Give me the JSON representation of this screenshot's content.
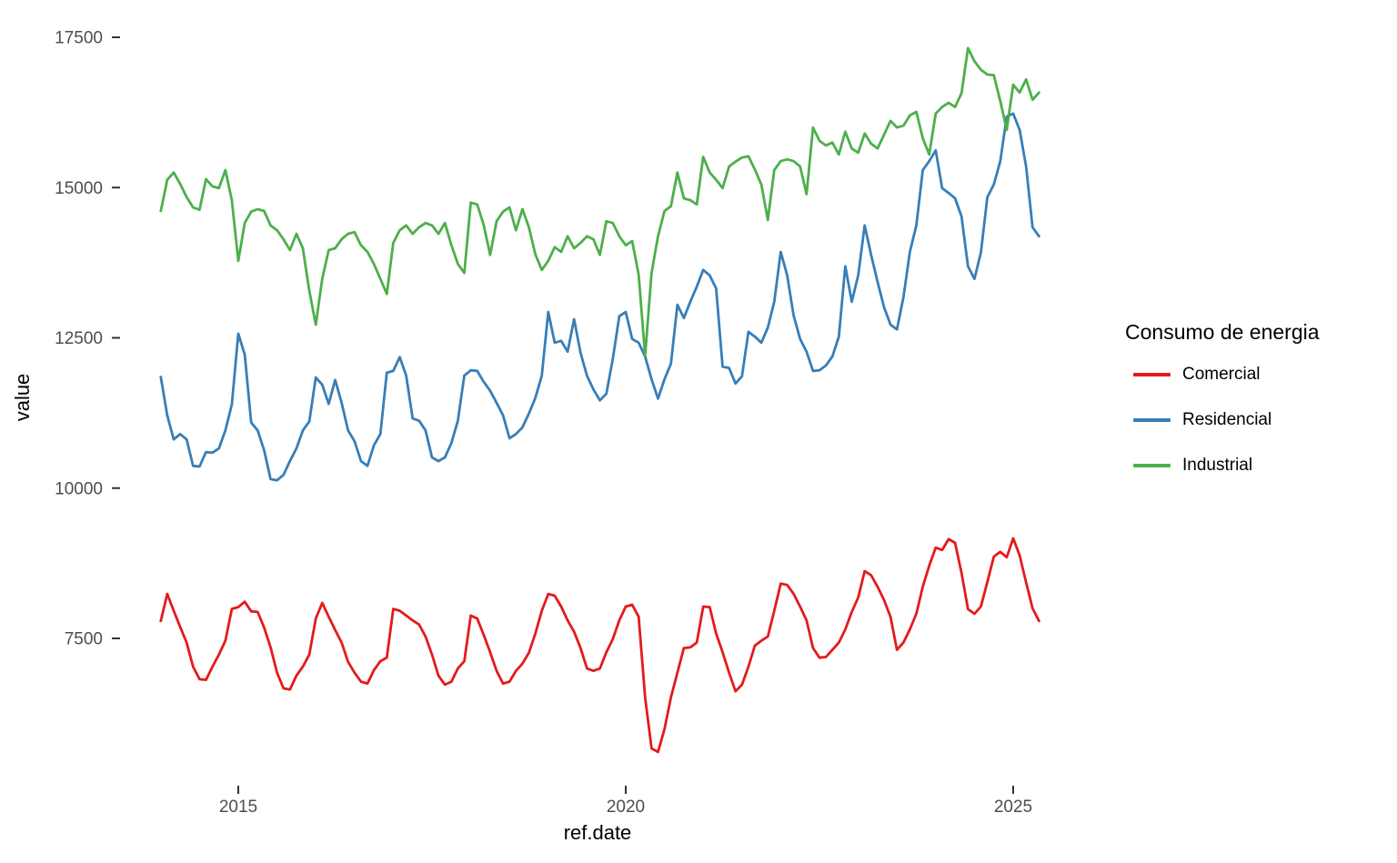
{
  "legend": {
    "title": "Consumo de energia",
    "items": [
      {
        "label": "Comercial",
        "color": "#E41A1C"
      },
      {
        "label": "Residencial",
        "color": "#377EB8"
      },
      {
        "label": "Industrial",
        "color": "#4DAF4A"
      }
    ]
  },
  "chart_data": {
    "type": "line",
    "title": "",
    "xlabel": "ref.date",
    "ylabel": "value",
    "x_ticks": [
      2015,
      2020,
      2025
    ],
    "y_ticks": [
      7500,
      10000,
      12500,
      15000,
      17500
    ],
    "ylim": [
      5400,
      17600
    ],
    "xlim_years": [
      2013.85,
      2025.6
    ],
    "frequency": "monthly",
    "x_start": "2014-01",
    "x_end": "2025-05",
    "grid": "off",
    "legend_position": "right",
    "series": [
      {
        "name": "Comercial",
        "color": "#E41A1C",
        "values": [
          7790,
          8240,
          7960,
          7690,
          7430,
          7030,
          6820,
          6810,
          7030,
          7230,
          7460,
          7990,
          8020,
          8110,
          7950,
          7940,
          7680,
          7350,
          6930,
          6670,
          6650,
          6880,
          7030,
          7230,
          7830,
          8090,
          7860,
          7640,
          7430,
          7110,
          6930,
          6780,
          6750,
          6970,
          7120,
          7180,
          7990,
          7960,
          7880,
          7800,
          7730,
          7530,
          7230,
          6880,
          6730,
          6780,
          7000,
          7120,
          7880,
          7830,
          7560,
          7270,
          6960,
          6750,
          6780,
          6960,
          7080,
          7260,
          7580,
          7960,
          8240,
          8210,
          8030,
          7800,
          7610,
          7340,
          7000,
          6960,
          7000,
          7270,
          7490,
          7800,
          8030,
          8060,
          7860,
          6520,
          5670,
          5610,
          5990,
          6520,
          6930,
          7340,
          7350,
          7430,
          8030,
          8020,
          7580,
          7270,
          6930,
          6620,
          6730,
          7030,
          7380,
          7460,
          7530,
          7960,
          8410,
          8390,
          8240,
          8030,
          7800,
          7340,
          7180,
          7190,
          7310,
          7430,
          7650,
          7940,
          8180,
          8620,
          8550,
          8360,
          8140,
          7860,
          7310,
          7430,
          7650,
          7910,
          8360,
          8710,
          9010,
          8970,
          9150,
          9090,
          8590,
          7985,
          7910,
          8030,
          8440,
          8860,
          8940,
          8850,
          9165,
          8880,
          8430,
          8000,
          7790
        ]
      },
      {
        "name": "Residencial",
        "color": "#377EB8",
        "values": [
          11850,
          11210,
          10810,
          10900,
          10810,
          10370,
          10360,
          10600,
          10590,
          10660,
          10960,
          11390,
          12570,
          12220,
          11090,
          10960,
          10630,
          10150,
          10130,
          10220,
          10450,
          10660,
          10960,
          11110,
          11840,
          11720,
          11400,
          11800,
          11420,
          10960,
          10780,
          10450,
          10370,
          10710,
          10900,
          11920,
          11950,
          12180,
          11870,
          11160,
          11120,
          10960,
          10510,
          10450,
          10510,
          10750,
          11120,
          11870,
          11960,
          11950,
          11770,
          11620,
          11420,
          11210,
          10830,
          10900,
          11010,
          11240,
          11500,
          11870,
          12930,
          12420,
          12450,
          12270,
          12810,
          12250,
          11870,
          11640,
          11460,
          11570,
          12150,
          12860,
          12930,
          12480,
          12420,
          12190,
          11810,
          11490,
          11810,
          12070,
          13050,
          12830,
          13100,
          13350,
          13630,
          13540,
          13320,
          12020,
          12000,
          11740,
          11860,
          12600,
          12520,
          12420,
          12670,
          13100,
          13930,
          13540,
          12870,
          12480,
          12270,
          11950,
          11960,
          12040,
          12190,
          12520,
          13690,
          13100,
          13540,
          14370,
          13880,
          13430,
          13010,
          12720,
          12640,
          13170,
          13930,
          14370,
          15290,
          15440,
          15620,
          14990,
          14910,
          14820,
          14520,
          13690,
          13480,
          13920,
          14840,
          15050,
          15440,
          16180,
          16230,
          15960,
          15350,
          14340,
          14190
        ]
      },
      {
        "name": "Industrial",
        "color": "#4DAF4A",
        "values": [
          14610,
          15130,
          15250,
          15060,
          14840,
          14670,
          14630,
          15140,
          15020,
          14990,
          15290,
          14790,
          13780,
          14410,
          14600,
          14640,
          14610,
          14370,
          14290,
          14140,
          13960,
          14230,
          13990,
          13280,
          12720,
          13480,
          13960,
          13990,
          14140,
          14230,
          14260,
          14040,
          13930,
          13730,
          13480,
          13230,
          14080,
          14290,
          14370,
          14230,
          14340,
          14410,
          14370,
          14230,
          14410,
          14040,
          13730,
          13580,
          14750,
          14720,
          14380,
          13880,
          14440,
          14600,
          14670,
          14290,
          14640,
          14340,
          13890,
          13630,
          13780,
          14010,
          13930,
          14190,
          13990,
          14080,
          14190,
          14140,
          13880,
          14440,
          14410,
          14190,
          14040,
          14110,
          13550,
          12200,
          13580,
          14190,
          14610,
          14690,
          15250,
          14820,
          14790,
          14720,
          15510,
          15250,
          15130,
          14990,
          15350,
          15430,
          15500,
          15520,
          15300,
          15050,
          14460,
          15290,
          15440,
          15470,
          15440,
          15350,
          14890,
          16000,
          15780,
          15700,
          15750,
          15550,
          15930,
          15650,
          15580,
          15900,
          15730,
          15650,
          15880,
          16110,
          16000,
          16030,
          16200,
          16260,
          15820,
          15550,
          16230,
          16340,
          16410,
          16340,
          16570,
          17320,
          17100,
          16960,
          16880,
          16870,
          16440,
          15960,
          16710,
          16580,
          16800,
          16460,
          16580
        ]
      }
    ]
  }
}
